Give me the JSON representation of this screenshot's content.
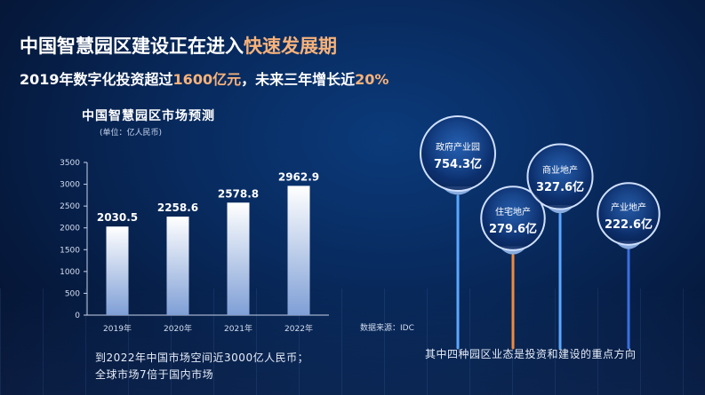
{
  "header": {
    "title_main": "中国智慧园区建设正在进入",
    "title_highlight": "快速发展期",
    "subtitle_part1": "2019年数字化投资超过",
    "subtitle_hl1": "1600亿元",
    "subtitle_part2": "，未来三年增长近",
    "subtitle_hl2": "20%"
  },
  "chart_data": [
    {
      "type": "bar",
      "title": "中国智慧园区市场预测",
      "unit": "(单位：亿人民币)",
      "categories": [
        "2019年",
        "2020年",
        "2021年",
        "2022年"
      ],
      "values": [
        2030.5,
        2258.6,
        2578.8,
        2962.9
      ],
      "value_labels": [
        "2030.5",
        "2258.6",
        "2578.8",
        "2962.9"
      ],
      "ylim": [
        0,
        3500
      ],
      "yticks": [
        0,
        500,
        1000,
        1500,
        2000,
        2500,
        3000,
        3500
      ],
      "grid": false,
      "colors": {
        "bar_top": "#ffffff",
        "bar_bottom": "#7f9fd6"
      }
    },
    {
      "type": "bar",
      "categories": [
        "政府产业园",
        "住宅地产",
        "商业地产",
        "产业地产"
      ],
      "values": [
        754.3,
        279.6,
        327.6,
        222.6
      ],
      "value_labels": [
        "754.3亿",
        "279.6亿",
        "327.6亿",
        "222.6亿"
      ],
      "colors": [
        "#5aa8ff",
        "#f08a3c",
        "#5aa8ff",
        "#3b6fe0"
      ]
    }
  ],
  "source": "数据来源：IDC",
  "note": {
    "line1": "到2022年中国市场空间近3000亿人民币；",
    "line2": "全球市场7倍于国内市场"
  },
  "bottom_caption": "其中四种园区业态是投资和建设的重点方向"
}
